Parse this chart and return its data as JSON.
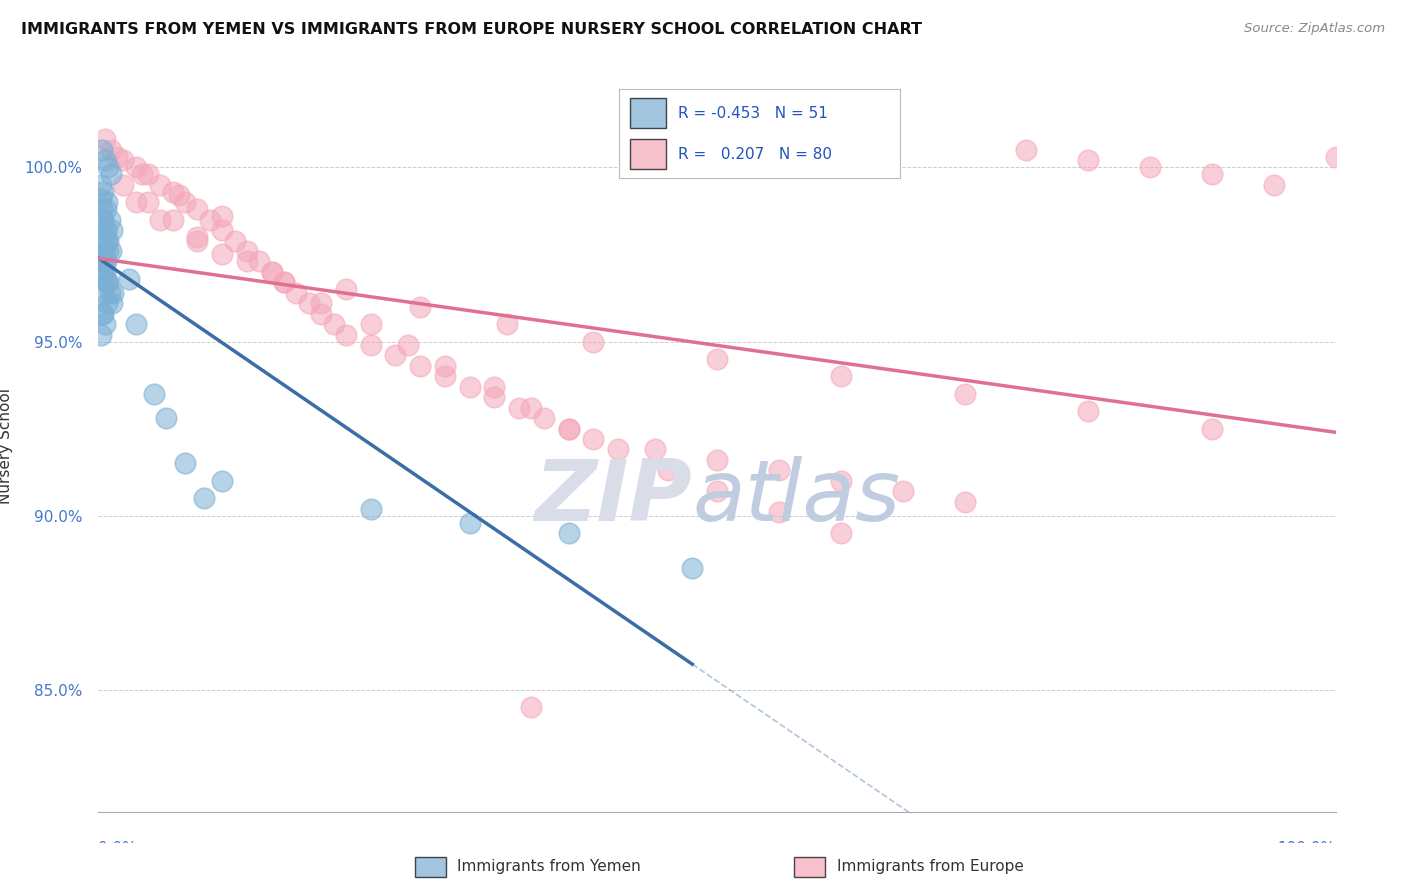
{
  "title": "IMMIGRANTS FROM YEMEN VS IMMIGRANTS FROM EUROPE NURSERY SCHOOL CORRELATION CHART",
  "source": "Source: ZipAtlas.com",
  "ylabel": "Nursery School",
  "yticks": [
    100.0,
    95.0,
    90.0,
    85.0
  ],
  "ytick_labels": [
    "100.0%",
    "95.0%",
    "90.0%",
    "85.0%"
  ],
  "xlim": [
    0.0,
    100.0
  ],
  "ylim": [
    81.5,
    102.5
  ],
  "legend_r_blue": "-0.453",
  "legend_n_blue": "51",
  "legend_r_pink": "0.207",
  "legend_n_pink": "80",
  "blue_color": "#7bafd4",
  "pink_color": "#f4a7b9",
  "blue_line_color": "#3a6ea5",
  "pink_line_color": "#e07090",
  "grid_color": "#cccccc",
  "blue_scatter_x": [
    0.3,
    0.5,
    0.8,
    1.0,
    0.2,
    0.4,
    0.7,
    0.6,
    0.9,
    1.1,
    0.3,
    0.5,
    0.6,
    0.4,
    0.8,
    1.2,
    0.7,
    0.3,
    0.5,
    0.2,
    0.4,
    0.6,
    0.8,
    1.0,
    0.3,
    0.5,
    0.7,
    0.9,
    1.1,
    0.4,
    0.2,
    0.3,
    0.4,
    0.6,
    0.7,
    0.8,
    0.5,
    0.3,
    0.6,
    0.4,
    2.5,
    3.0,
    4.5,
    5.5,
    7.0,
    8.5,
    10.0,
    22.0,
    30.0,
    38.0,
    48.0
  ],
  "blue_scatter_y": [
    100.5,
    100.2,
    100.0,
    99.8,
    99.5,
    99.3,
    99.0,
    98.8,
    98.5,
    98.2,
    97.9,
    97.6,
    97.3,
    97.0,
    96.7,
    96.4,
    96.1,
    95.8,
    95.5,
    95.2,
    98.5,
    98.2,
    97.9,
    97.6,
    97.3,
    97.0,
    96.7,
    96.4,
    96.1,
    95.8,
    99.1,
    98.8,
    98.5,
    98.2,
    97.9,
    97.6,
    97.3,
    97.0,
    96.7,
    96.4,
    96.8,
    95.5,
    93.5,
    92.8,
    91.5,
    90.5,
    91.0,
    90.2,
    89.8,
    89.5,
    88.5
  ],
  "pink_scatter_x": [
    0.5,
    1.0,
    2.0,
    3.0,
    4.0,
    5.0,
    6.0,
    7.0,
    8.0,
    9.0,
    10.0,
    11.0,
    12.0,
    13.0,
    14.0,
    15.0,
    16.0,
    17.0,
    18.0,
    19.0,
    20.0,
    22.0,
    24.0,
    26.0,
    28.0,
    30.0,
    32.0,
    34.0,
    36.0,
    38.0,
    40.0,
    45.0,
    50.0,
    55.0,
    60.0,
    65.0,
    70.0,
    75.0,
    80.0,
    85.0,
    90.0,
    95.0,
    100.0,
    3.0,
    5.0,
    8.0,
    12.0,
    15.0,
    18.0,
    22.0,
    25.0,
    28.0,
    32.0,
    35.0,
    38.0,
    42.0,
    46.0,
    50.0,
    55.0,
    60.0,
    2.0,
    4.0,
    6.0,
    8.0,
    10.0,
    14.0,
    20.0,
    26.0,
    33.0,
    40.0,
    50.0,
    60.0,
    70.0,
    80.0,
    90.0,
    1.5,
    3.5,
    6.5,
    10.0,
    35.0
  ],
  "pink_scatter_y": [
    100.8,
    100.5,
    100.2,
    100.0,
    99.8,
    99.5,
    99.3,
    99.0,
    98.8,
    98.5,
    98.2,
    97.9,
    97.6,
    97.3,
    97.0,
    96.7,
    96.4,
    96.1,
    95.8,
    95.5,
    95.2,
    94.9,
    94.6,
    94.3,
    94.0,
    93.7,
    93.4,
    93.1,
    92.8,
    92.5,
    92.2,
    91.9,
    91.6,
    91.3,
    91.0,
    90.7,
    90.4,
    100.5,
    100.2,
    100.0,
    99.8,
    99.5,
    100.3,
    99.0,
    98.5,
    97.9,
    97.3,
    96.7,
    96.1,
    95.5,
    94.9,
    94.3,
    93.7,
    93.1,
    92.5,
    91.9,
    91.3,
    90.7,
    90.1,
    89.5,
    99.5,
    99.0,
    98.5,
    98.0,
    97.5,
    97.0,
    96.5,
    96.0,
    95.5,
    95.0,
    94.5,
    94.0,
    93.5,
    93.0,
    92.5,
    100.3,
    99.8,
    99.2,
    98.6,
    84.5
  ]
}
